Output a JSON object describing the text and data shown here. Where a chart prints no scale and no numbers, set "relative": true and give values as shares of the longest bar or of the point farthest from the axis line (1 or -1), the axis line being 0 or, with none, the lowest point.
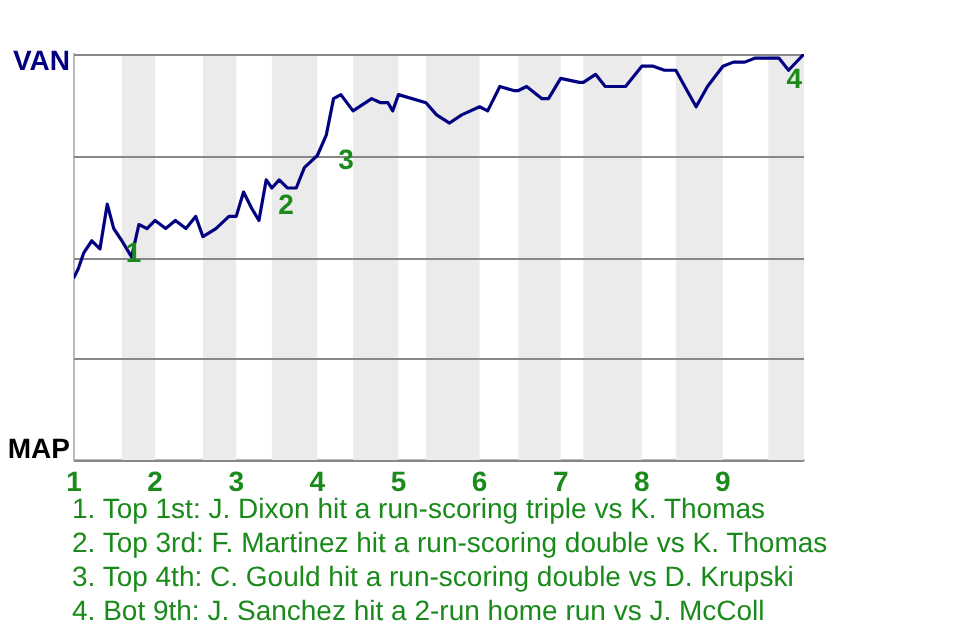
{
  "chart_data": {
    "type": "line",
    "relative": true,
    "x": [
      1,
      1.05,
      1.12,
      1.22,
      1.32,
      1.41,
      1.49,
      1.59,
      1.71,
      1.8,
      1.9,
      2,
      2.13,
      2.25,
      2.38,
      2.5,
      2.59,
      2.75,
      2.91,
      3,
      3.09,
      3.19,
      3.28,
      3.37,
      3.44,
      3.53,
      3.63,
      3.74,
      3.84,
      4,
      4.11,
      4.2,
      4.29,
      4.44,
      4.67,
      4.78,
      4.87,
      4.93,
      5,
      5.34,
      5.47,
      5.63,
      5.78,
      6,
      6.1,
      6.25,
      6.42,
      6.48,
      6.58,
      6.77,
      6.85,
      7,
      7.23,
      7.28,
      7.43,
      7.55,
      7.8,
      8,
      8.14,
      8.28,
      8.42,
      8.53,
      8.67,
      8.81,
      9,
      9.13,
      9.27,
      9.4,
      9.56,
      9.69,
      9.81,
      10
    ],
    "series": [
      {
        "color": "#000080",
        "values": [
          0.45,
          0.47,
          0.51,
          0.54,
          0.52,
          0.63,
          0.57,
          0.54,
          0.5,
          0.58,
          0.57,
          0.59,
          0.57,
          0.59,
          0.57,
          0.6,
          0.55,
          0.57,
          0.6,
          0.6,
          0.66,
          0.62,
          0.59,
          0.69,
          0.67,
          0.69,
          0.67,
          0.67,
          0.72,
          0.75,
          0.8,
          0.89,
          0.9,
          0.86,
          0.89,
          0.88,
          0.88,
          0.86,
          0.9,
          0.88,
          0.85,
          0.83,
          0.85,
          0.87,
          0.86,
          0.92,
          0.91,
          0.91,
          0.92,
          0.89,
          0.89,
          0.94,
          0.93,
          0.93,
          0.95,
          0.92,
          0.92,
          0.97,
          0.97,
          0.96,
          0.96,
          0.92,
          0.87,
          0.92,
          0.97,
          0.98,
          0.98,
          0.99,
          0.99,
          0.99,
          0.96,
          1
        ]
      }
    ],
    "xlim": [
      1,
      10
    ],
    "xticks": [
      1,
      2,
      3,
      4,
      5,
      6,
      7,
      8,
      9
    ],
    "grid": "y",
    "legend": false,
    "marker": "none",
    "line_style": "solid",
    "bands": [
      {
        "axis": "x",
        "from": 1.59,
        "to": 2,
        "color": "#ebebeb"
      },
      {
        "axis": "x",
        "from": 2.59,
        "to": 3,
        "color": "#ebebeb"
      },
      {
        "axis": "x",
        "from": 3.44,
        "to": 4,
        "color": "#ebebeb"
      },
      {
        "axis": "x",
        "from": 4.44,
        "to": 5,
        "color": "#ebebeb"
      },
      {
        "axis": "x",
        "from": 5.34,
        "to": 6,
        "color": "#ebebeb"
      },
      {
        "axis": "x",
        "from": 6.48,
        "to": 7,
        "color": "#ebebeb"
      },
      {
        "axis": "x",
        "from": 7.28,
        "to": 8,
        "color": "#ebebeb"
      },
      {
        "axis": "x",
        "from": 8.42,
        "to": 9,
        "color": "#ebebeb"
      },
      {
        "axis": "x",
        "from": 9.56,
        "to": 10,
        "color": "#ebebeb"
      }
    ],
    "annotations": [
      "VAN",
      "MAP",
      {
        "text": "1",
        "x": 1.49,
        "y": 0.57
      },
      {
        "text": "2",
        "x": 3.37,
        "y": 0.69
      },
      {
        "text": "3",
        "x": 4.11,
        "y": 0.8
      },
      {
        "text": "4",
        "x": 10,
        "y": 1
      },
      "1. Top 1st: J. Dixon hit a run-scoring triple vs K. Thomas",
      "2. Top 3rd: F. Martinez hit a run-scoring double vs K. Thomas",
      "3. Top 4th: C. Gould hit a run-scoring double vs D. Krupski",
      "4. Bot 9th: J. Sanchez hit a 2-run home run vs J. McColl"
    ]
  }
}
